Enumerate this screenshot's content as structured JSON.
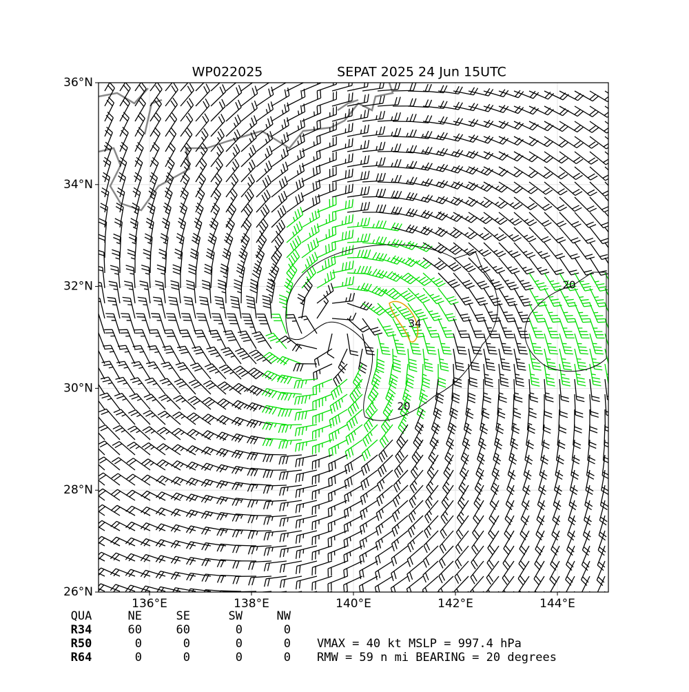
{
  "map": {
    "title_left": "WP022025",
    "title_right": "SEPAT 2025 24 Jun 15UTC",
    "xlim": [
      135,
      145
    ],
    "ylim": [
      26,
      36
    ],
    "xticks": [
      {
        "value": 136,
        "label": "136°E"
      },
      {
        "value": 138,
        "label": "138°E"
      },
      {
        "value": 140,
        "label": "140°E"
      },
      {
        "value": 142,
        "label": "142°E"
      },
      {
        "value": 144,
        "label": "144°E"
      }
    ],
    "yticks": [
      {
        "value": 26,
        "label": "26°N"
      },
      {
        "value": 28,
        "label": "28°N"
      },
      {
        "value": 30,
        "label": "30°N"
      },
      {
        "value": 32,
        "label": "32°N"
      },
      {
        "value": 34,
        "label": "34°N"
      },
      {
        "value": 36,
        "label": "36°N"
      }
    ],
    "contour_labels": [
      "20",
      "34",
      "20"
    ]
  },
  "table": {
    "header": [
      "QUA",
      "NE",
      "SE",
      "SW",
      "NW"
    ],
    "rows": [
      [
        "R34",
        60,
        60,
        0,
        0
      ],
      [
        "R50",
        0,
        0,
        0,
        0
      ],
      [
        "R64",
        0,
        0,
        0,
        0
      ]
    ]
  },
  "stats": [
    "VMAX =  40 kt MSLP = 997.4 hPa",
    "RMW =  59 n mi BEARING =  20 degrees"
  ]
}
